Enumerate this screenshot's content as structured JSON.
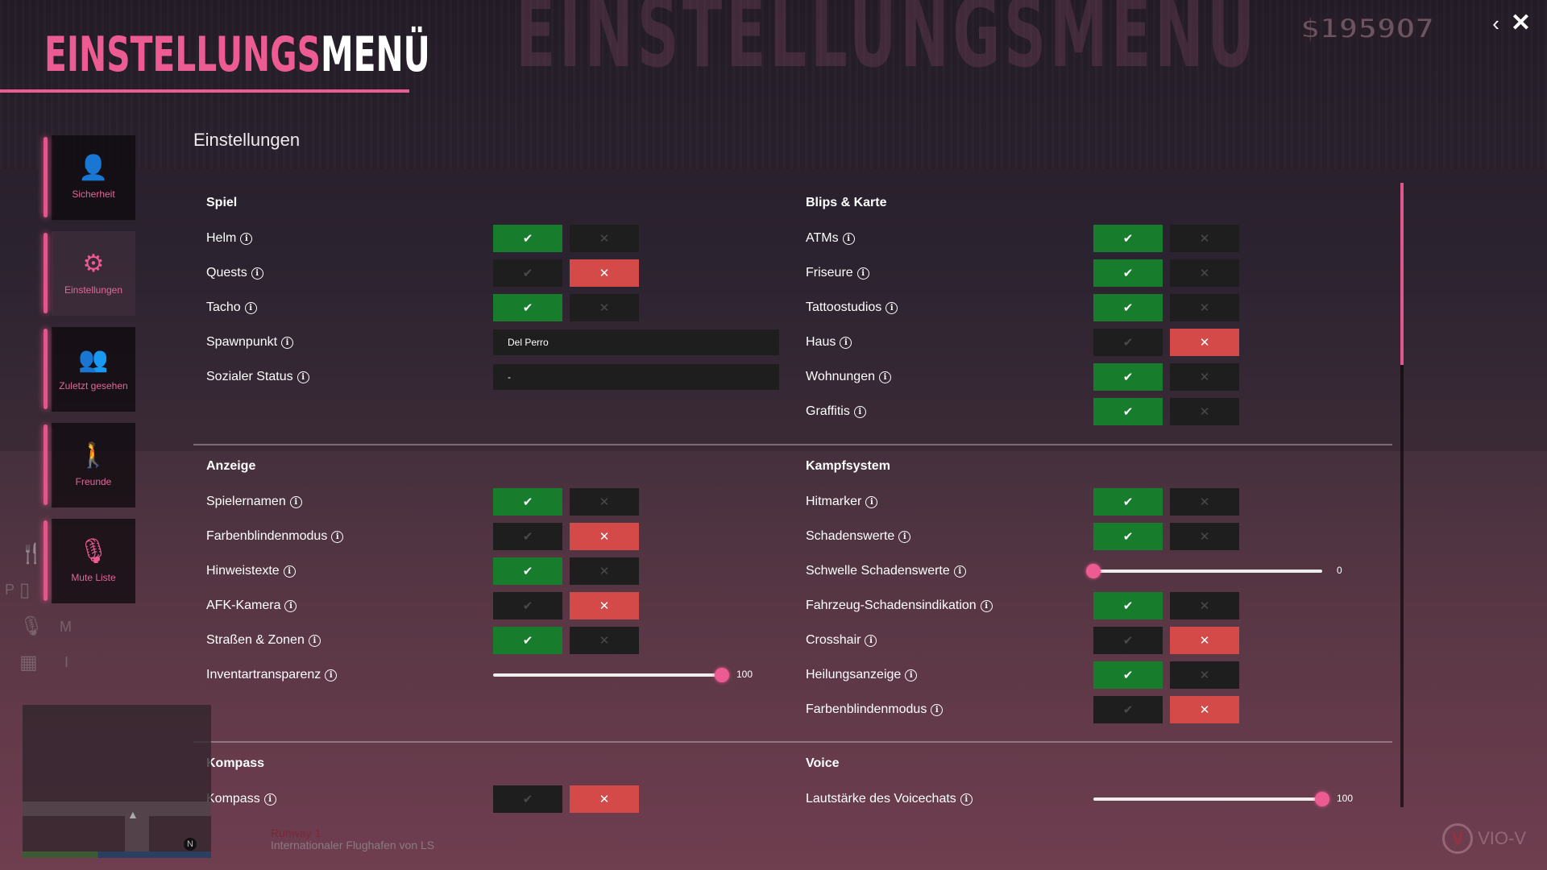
{
  "header": {
    "watermark": "EINSTELLUNGSMENU",
    "title_part1": "EINSTELLUNGS",
    "title_part2": "MENÜ",
    "money": "$195907",
    "back_icon": "chevron-left-icon",
    "close_icon": "close-icon"
  },
  "sidebar": {
    "items": [
      {
        "label": "Sicherheit",
        "icon": "user-icon",
        "active": false
      },
      {
        "label": "Einstellungen",
        "icon": "gear-icon",
        "active": true
      },
      {
        "label": "Zuletzt gesehen",
        "icon": "users-icon",
        "active": false
      },
      {
        "label": "Freunde",
        "icon": "person-icon",
        "active": false
      },
      {
        "label": "Mute Liste",
        "icon": "microphone-slash-icon",
        "active": false
      }
    ]
  },
  "main": {
    "heading": "Einstellungen",
    "blocks": [
      {
        "left": {
          "title": "Spiel",
          "rows": [
            {
              "label": "Helm",
              "type": "toggle",
              "value": true
            },
            {
              "label": "Quests",
              "type": "toggle",
              "value": false
            },
            {
              "label": "Tacho",
              "type": "toggle",
              "value": true
            },
            {
              "label": "Spawnpunkt",
              "type": "input",
              "value": "Del Perro"
            },
            {
              "label": "Sozialer Status",
              "type": "input",
              "value": "-"
            }
          ]
        },
        "right": {
          "title": "Blips & Karte",
          "rows": [
            {
              "label": "ATMs",
              "type": "toggle",
              "value": true
            },
            {
              "label": "Friseure",
              "type": "toggle",
              "value": true
            },
            {
              "label": "Tattoostudios",
              "type": "toggle",
              "value": true
            },
            {
              "label": "Haus",
              "type": "toggle",
              "value": false
            },
            {
              "label": "Wohnungen",
              "type": "toggle",
              "value": true
            },
            {
              "label": "Graffitis",
              "type": "toggle",
              "value": true
            }
          ]
        }
      },
      {
        "left": {
          "title": "Anzeige",
          "rows": [
            {
              "label": "Spielernamen",
              "type": "toggle",
              "value": true
            },
            {
              "label": "Farbenblindenmodus",
              "type": "toggle",
              "value": false
            },
            {
              "label": "Hinweistexte",
              "type": "toggle",
              "value": true
            },
            {
              "label": "AFK-Kamera",
              "type": "toggle",
              "value": false
            },
            {
              "label": "Straßen & Zonen",
              "type": "toggle",
              "value": true
            },
            {
              "label": "Inventartransparenz",
              "type": "slider",
              "value": "100",
              "max": 100
            }
          ]
        },
        "right": {
          "title": "Kampfsystem",
          "rows": [
            {
              "label": "Hitmarker",
              "type": "toggle",
              "value": true
            },
            {
              "label": "Schadenswerte",
              "type": "toggle",
              "value": true
            },
            {
              "label": "Schwelle Schadenswerte",
              "type": "slider",
              "value": "0",
              "max": 100
            },
            {
              "label": "Fahrzeug-Schadensindikation",
              "type": "toggle",
              "value": true
            },
            {
              "label": "Crosshair",
              "type": "toggle",
              "value": false
            },
            {
              "label": "Heilungsanzeige",
              "type": "toggle",
              "value": true
            },
            {
              "label": "Farbenblindenmodus",
              "type": "toggle",
              "value": false
            }
          ]
        }
      },
      {
        "left": {
          "title": "Kompass",
          "rows": [
            {
              "label": "Kompass",
              "type": "toggle",
              "value": false
            }
          ]
        },
        "right": {
          "title": "Voice",
          "rows": [
            {
              "label": "Lautstärke des Voicechats",
              "type": "slider",
              "value": "100",
              "max": 100
            }
          ]
        }
      }
    ]
  },
  "hud": {
    "keys": [
      "P",
      "M",
      "I"
    ],
    "location_street": "Runway 1",
    "location_area": "Internationaler Flughafen von LS",
    "compass": "N",
    "logo": "VIO-V"
  },
  "colors": {
    "accent": "#ec5b92",
    "on": "#177c2c",
    "off": "#d34a48"
  }
}
